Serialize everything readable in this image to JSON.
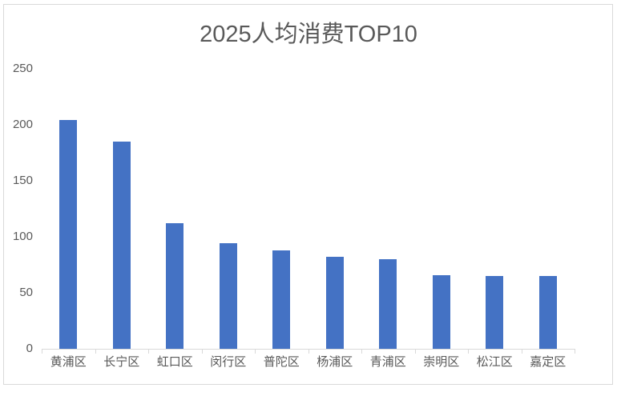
{
  "chart_data": {
    "type": "bar",
    "title": "2025人均消费TOP10",
    "categories": [
      "黄浦区",
      "长宁区",
      "虹口区",
      "闵行区",
      "普陀区",
      "杨浦区",
      "青浦区",
      "崇明区",
      "松江区",
      "嘉定区"
    ],
    "values": [
      204,
      185,
      112,
      94,
      88,
      82,
      80,
      66,
      65,
      65
    ],
    "xlabel": "",
    "ylabel": "",
    "ylim": [
      0,
      250
    ],
    "yticks": [
      0,
      50,
      100,
      150,
      200,
      250
    ],
    "grid": false,
    "legend": false,
    "bar_color": "#4472c4"
  },
  "colors": {
    "bar": "#4472c4",
    "text": "#595959",
    "axis_line": "#d9d9d9",
    "frame_border": "#d9d9d9",
    "background": "#ffffff"
  }
}
